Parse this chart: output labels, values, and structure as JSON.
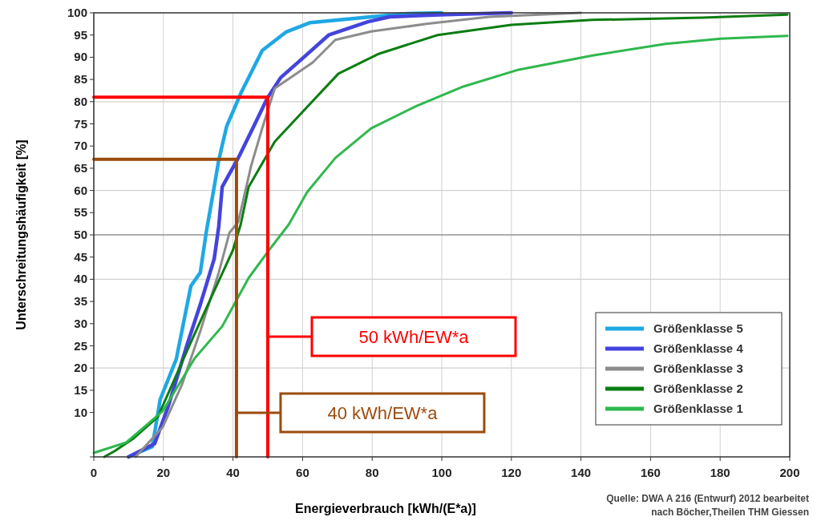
{
  "chart_data": {
    "type": "line",
    "xlabel": "Energieverbrauch [kWh/(E*a)]",
    "ylabel": "Unterschreitungshäufigkeit [%]",
    "xlim": [
      0,
      200
    ],
    "xticks": [
      0,
      20,
      40,
      60,
      80,
      100,
      120,
      140,
      160,
      180,
      200
    ],
    "ylim": [
      0,
      100
    ],
    "yticks": [
      {
        "value": 0,
        "label": null
      },
      10,
      15,
      20,
      25,
      30,
      35,
      40,
      45,
      50,
      55,
      60,
      65,
      70,
      75,
      80,
      85,
      90,
      95,
      100
    ],
    "grid": "x",
    "legend": "bottom right",
    "line_style": "solid",
    "marker": "none",
    "ref_lines": [
      {
        "axis": "y",
        "value": 20,
        "color": "#d0d0d0"
      },
      {
        "axis": "y",
        "value": 40,
        "color": "#d0d0d0"
      },
      {
        "axis": "y",
        "value": 60,
        "color": "#d0d0d0"
      },
      {
        "axis": "y",
        "value": 80,
        "color": "#d0d0d0"
      },
      {
        "axis": "y",
        "value": 50,
        "color": "#909090"
      }
    ],
    "series": [
      {
        "name": "Größenklasse 5",
        "color": "#1fa8e4",
        "x": [
          10,
          16.8,
          19.1,
          23.7,
          27.9,
          30.6,
          32.3,
          34.6,
          35.9,
          38.2,
          42.2,
          48.4,
          55.3,
          62.2,
          79.7,
          90,
          100
        ],
        "values": [
          0,
          2.3,
          13,
          22,
          38.5,
          41.5,
          50.5,
          60.8,
          66.8,
          74.5,
          81.8,
          91.5,
          95.7,
          97.8,
          99.1,
          99.8,
          100
        ]
      },
      {
        "name": "Größenklasse 4",
        "color": "#4444dd",
        "x": [
          10,
          17.5,
          21.4,
          26.7,
          30.6,
          34.6,
          35.9,
          36.9,
          41.5,
          46,
          49.8,
          53.7,
          59.9,
          67.5,
          78.8,
          85,
          101,
          120
        ],
        "values": [
          0,
          3,
          11.4,
          25,
          34.3,
          44.6,
          51.8,
          60.8,
          67.3,
          74.5,
          80.7,
          85.4,
          89.7,
          95,
          98,
          99.1,
          99.6,
          100
        ]
      },
      {
        "name": "Größenklasse 3",
        "color": "#8c8c8c",
        "x": [
          12,
          19.8,
          25.3,
          30.6,
          35.9,
          39,
          41.5,
          45.2,
          48.4,
          52,
          62.9,
          69.4,
          79.7,
          95.6,
          113.6,
          140
        ],
        "values": [
          0,
          6.7,
          16.2,
          28.3,
          41.5,
          50.5,
          52.9,
          65.5,
          74,
          83,
          88.8,
          93.9,
          95.8,
          97.5,
          99.1,
          100
        ]
      },
      {
        "name": "Größenklasse 2",
        "color": "#0b7d12",
        "x": [
          3,
          6,
          11.5,
          18.4,
          27.6,
          34.6,
          39.9,
          42.2,
          44.5,
          52,
          59.9,
          70.3,
          82,
          98.8,
          120,
          143.3,
          175,
          199.3
        ],
        "values": [
          0,
          1.3,
          4.2,
          9,
          25.3,
          37.4,
          46.4,
          52.3,
          60.8,
          71,
          77.6,
          86.3,
          90.8,
          95,
          97.3,
          98.4,
          98.9,
          99.6
        ]
      },
      {
        "name": "Größenklasse 1",
        "color": "#2fb84e",
        "x": [
          0,
          9.2,
          15.2,
          19.8,
          29,
          36.9,
          44.5,
          50.7,
          56,
          61.3,
          69.4,
          79.7,
          92.4,
          106.2,
          122.1,
          143.3,
          164.3,
          180.2,
          199.3
        ],
        "values": [
          0.9,
          3.2,
          7.2,
          10.3,
          22.2,
          29.4,
          40.3,
          46.9,
          52.3,
          59.6,
          67.3,
          74,
          78.9,
          83.4,
          87.2,
          90.4,
          93,
          94.2,
          94.8
        ]
      },
      {
        "color": "#ff0000",
        "x": [
          0,
          50,
          50
        ],
        "values": [
          81,
          81,
          0
        ]
      },
      {
        "color": "#9c4c0c",
        "x": [
          0,
          41,
          41
        ],
        "values": [
          67,
          67,
          0
        ]
      }
    ],
    "annotations": [
      "50 kWh/EW*a",
      "40 kWh/EW*a",
      "Quelle: DWA A 216 (Entwurf) 2012  bearbeitet",
      "nach Böcher,Theilen THM Giessen"
    ]
  }
}
